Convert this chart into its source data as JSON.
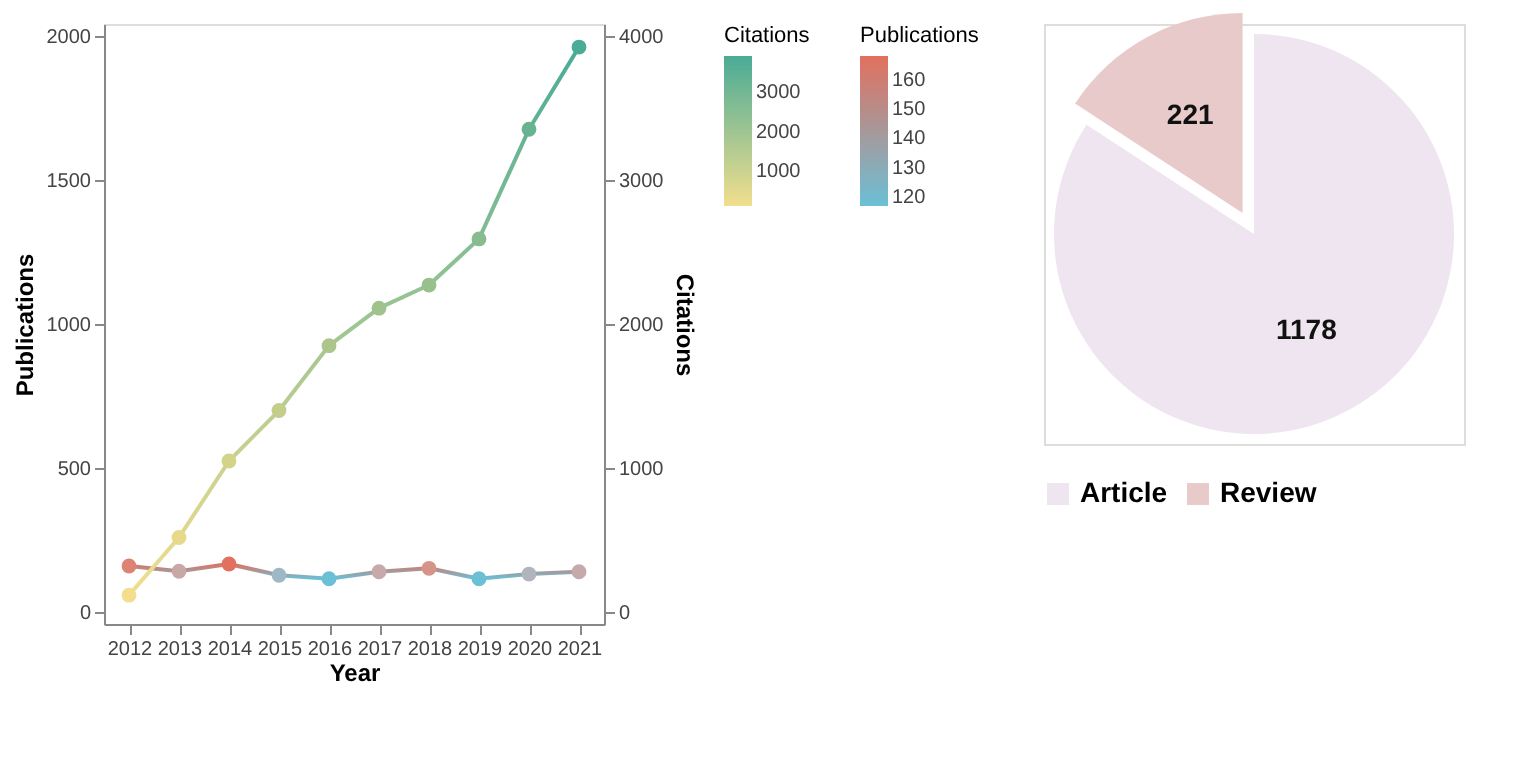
{
  "chart_data": [
    {
      "type": "line",
      "xlabel": "Year",
      "ylabel": "Publications",
      "categories": [
        "2012",
        "2013",
        "2014",
        "2015",
        "2016",
        "2017",
        "2018",
        "2019",
        "2020",
        "2021"
      ],
      "ylim": [
        -40,
        2040
      ],
      "yticks": [
        0,
        500,
        1000,
        1500,
        2000
      ],
      "marker": "circle",
      "grid": false,
      "clabel": "Publications",
      "clim": [
        117,
        168
      ],
      "cticks": [
        120,
        130,
        140,
        150,
        160
      ],
      "series": [
        {
          "colors": [
            "#df8276",
            "#c9a7a6",
            "#e2705e",
            "#9fb8c6",
            "#6bc0d6",
            "#c6a9aa",
            "#d6938a",
            "#6bc0d6",
            "#b0b4bd",
            "#c6a9aa"
          ],
          "values": [
            161,
            143,
            168,
            129,
            117,
            141,
            153,
            117,
            133,
            141
          ]
        }
      ]
    },
    {
      "type": "line",
      "y2label": "Citations",
      "categories": [
        "2012",
        "2013",
        "2014",
        "2015",
        "2016",
        "2017",
        "2018",
        "2019",
        "2020",
        "2021"
      ],
      "y2lim": [
        -80,
        4080
      ],
      "y2ticks": [
        0,
        1000,
        2000,
        3000,
        4000
      ],
      "marker": "circle",
      "grid": false,
      "tick_labels": "y",
      "clabel": "Citations",
      "clim": [
        120,
        3920
      ],
      "cticks": [
        1000,
        2000,
        3000
      ],
      "series": [
        {
          "axis": "y2",
          "colors": [
            "#f2de8e",
            "#e6d98a",
            "#d4d38a",
            "#c4cd8a",
            "#acc58a",
            "#a0c28c",
            "#98c08c",
            "#88bc8e",
            "#68b392",
            "#4aab96"
          ],
          "values": [
            120,
            520,
            1050,
            1400,
            1850,
            2110,
            2270,
            2590,
            3350,
            3920
          ]
        }
      ]
    },
    {
      "type": "pie",
      "categories": [
        "Article",
        "Review"
      ],
      "values": [
        1178,
        221
      ],
      "colors": [
        "#eee5f0",
        "#e8caca"
      ],
      "data_labels": true,
      "legend": "bottom"
    }
  ]
}
